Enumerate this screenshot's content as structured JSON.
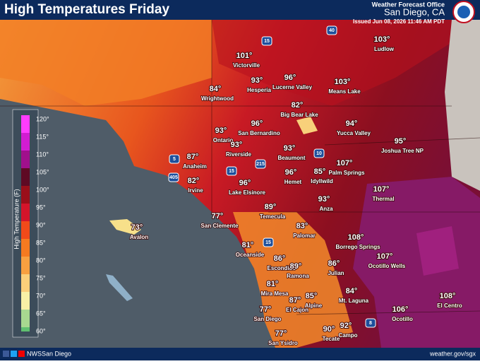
{
  "header": {
    "title": "High Temperatures Friday",
    "office": "Weather Forecast Office",
    "location": "San Diego, CA",
    "issued": "Issued Jun 08, 2026 11:46 AM PDT"
  },
  "legend": {
    "title": "High Temperature (F)",
    "labels": [
      "120°",
      "115°",
      "110°",
      "105°",
      "100°",
      "95°",
      "90°",
      "85°",
      "80°",
      "75°",
      "70°",
      "65°",
      "60°"
    ]
  },
  "highways": [
    "15",
    "40",
    "10",
    "5",
    "405",
    "215",
    "15",
    "15",
    "8"
  ],
  "cities": [
    {
      "name": "Victorville",
      "temp": "101°"
    },
    {
      "name": "Ludlow",
      "temp": "103°"
    },
    {
      "name": "Hesperia",
      "temp": "93°"
    },
    {
      "name": "Lucerne Valley",
      "temp": "96°"
    },
    {
      "name": "Means Lake",
      "temp": "103°"
    },
    {
      "name": "Wrightwood",
      "temp": "84°"
    },
    {
      "name": "Big Bear Lake",
      "temp": "82°"
    },
    {
      "name": "San Bernardino",
      "temp": "96°"
    },
    {
      "name": "Yucca Valley",
      "temp": "94°"
    },
    {
      "name": "Ontario",
      "temp": "93°"
    },
    {
      "name": "Joshua Tree NP",
      "temp": "95°"
    },
    {
      "name": "Riverside",
      "temp": "93°"
    },
    {
      "name": "Beaumont",
      "temp": "93°"
    },
    {
      "name": "Anaheim",
      "temp": "87°"
    },
    {
      "name": "Palm Springs",
      "temp": "107°"
    },
    {
      "name": "Hemet",
      "temp": "96°"
    },
    {
      "name": "Idyllwild",
      "temp": "85°"
    },
    {
      "name": "Irvine",
      "temp": "82°"
    },
    {
      "name": "Lake Elsinore",
      "temp": "96°"
    },
    {
      "name": "Thermal",
      "temp": "107°"
    },
    {
      "name": "Anza",
      "temp": "93°"
    },
    {
      "name": "Temecula",
      "temp": "89°"
    },
    {
      "name": "Avalon",
      "temp": "73°"
    },
    {
      "name": "San Clemente",
      "temp": "77°"
    },
    {
      "name": "Palomar",
      "temp": "83°"
    },
    {
      "name": "Borrego Springs",
      "temp": "108°"
    },
    {
      "name": "Oceanside",
      "temp": "81°"
    },
    {
      "name": "Ocotillo Wells",
      "temp": "107°"
    },
    {
      "name": "Escondido",
      "temp": "86°"
    },
    {
      "name": "Ramona",
      "temp": "89°"
    },
    {
      "name": "Julian",
      "temp": "86°"
    },
    {
      "name": "Mira Mesa",
      "temp": "81°"
    },
    {
      "name": "Mt. Laguna",
      "temp": "84°"
    },
    {
      "name": "Alpine",
      "temp": "85°"
    },
    {
      "name": "El Cajon",
      "temp": "87°"
    },
    {
      "name": "El Centro",
      "temp": "108°"
    },
    {
      "name": "San Diego",
      "temp": "77°"
    },
    {
      "name": "Ocotillo",
      "temp": "106°"
    },
    {
      "name": "Campo",
      "temp": "92°"
    },
    {
      "name": "Tecate",
      "temp": "90°"
    },
    {
      "name": "San Ysidro",
      "temp": "77°"
    }
  ],
  "footer": {
    "social": "NWSSan Diego",
    "url": "weather.gov/sgx"
  }
}
